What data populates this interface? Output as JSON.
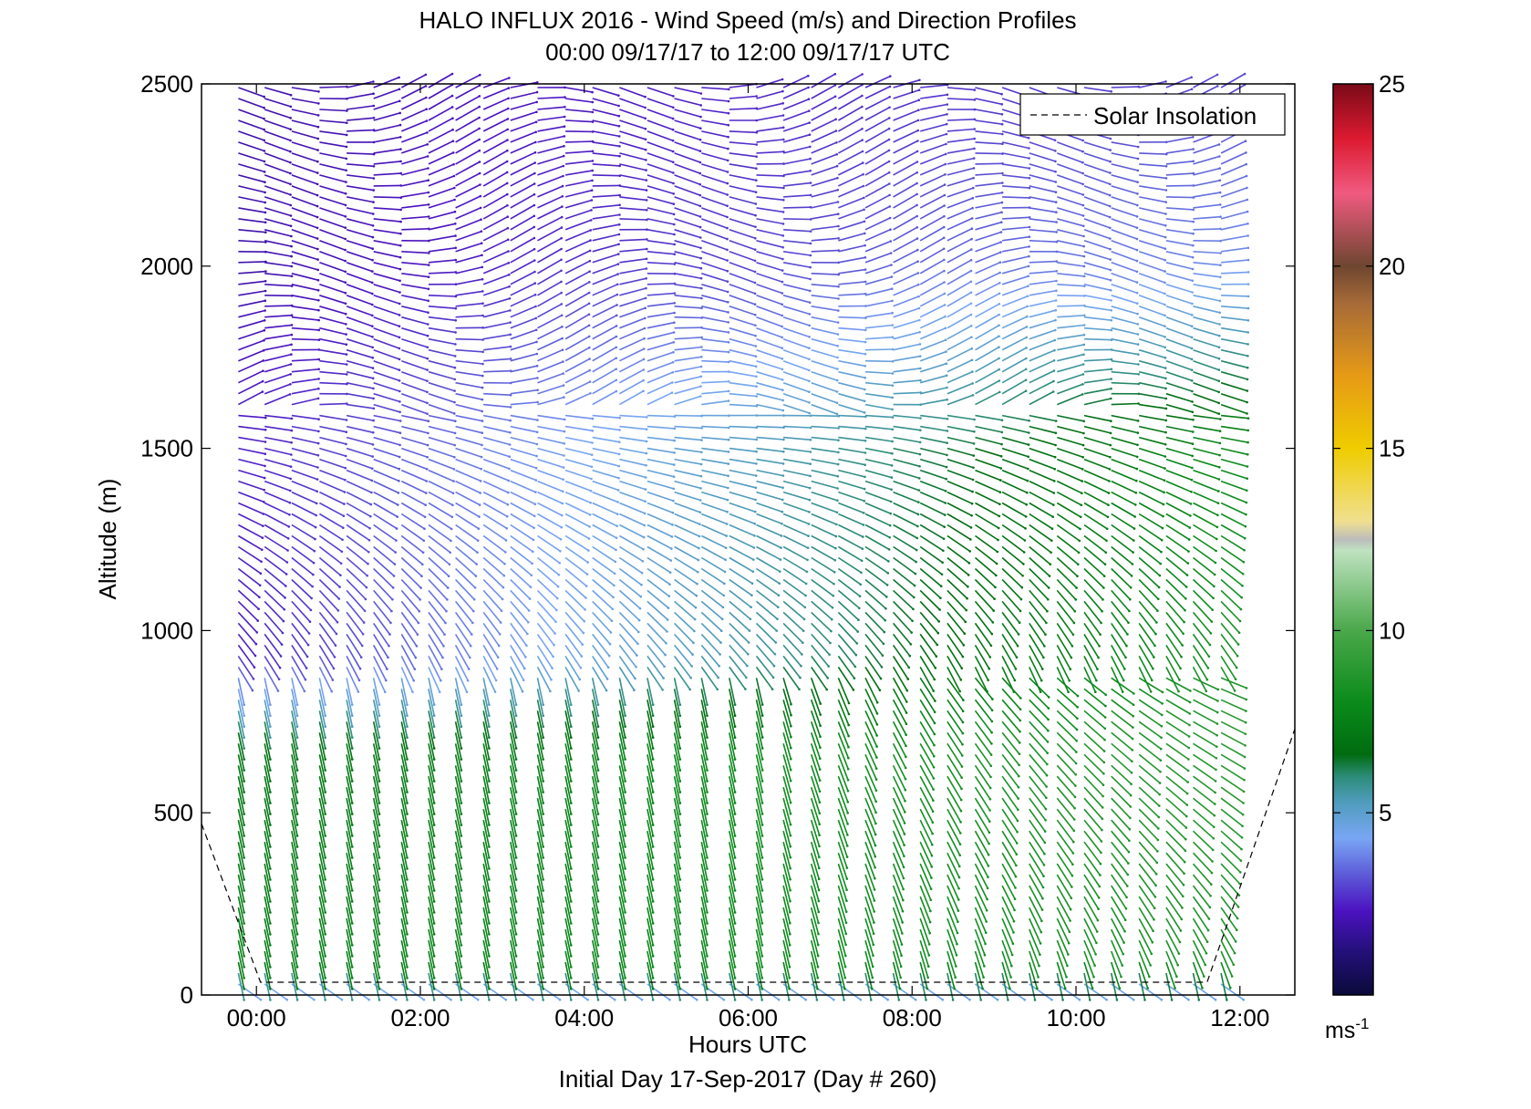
{
  "chart_data": {
    "type": "barb",
    "title": "HALO INFLUX 2016 - Wind Speed (m/s) and Direction Profiles",
    "subtitle": "00:00 09/17/17 to 12:00 09/17/17  UTC",
    "xlabel": "Hours UTC",
    "ylabel": "Altitude (m)",
    "footer": "Initial Day 17-Sep-2017 (Day # 260)",
    "xlim": [
      -0.67,
      12.67
    ],
    "ylim": [
      0,
      2500
    ],
    "x_ticks": [
      0,
      2,
      4,
      6,
      8,
      10,
      12
    ],
    "x_tick_labels": [
      "00:00",
      "02:00",
      "04:00",
      "06:00",
      "08:00",
      "10:00",
      "12:00"
    ],
    "y_ticks": [
      0,
      500,
      1000,
      1500,
      2000,
      2500
    ],
    "y_tick_labels": [
      "0",
      "500",
      "1000",
      "1500",
      "2000",
      "2500"
    ],
    "legend": {
      "entries": [
        "Solar Insolation"
      ],
      "placement": "top-right",
      "style": "dashed"
    },
    "colorbar": {
      "unit_label": "ms",
      "unit_exponent": "-1",
      "range": [
        0,
        25
      ],
      "ticks": [
        5,
        10,
        15,
        20,
        25
      ],
      "tick_labels": [
        "5",
        "10",
        "15",
        "20",
        "25"
      ],
      "stops": [
        {
          "v": 0,
          "c": "#0a0a3a"
        },
        {
          "v": 1.2,
          "c": "#24107a"
        },
        {
          "v": 2.3,
          "c": "#4b12c0"
        },
        {
          "v": 3.3,
          "c": "#5d5ad8"
        },
        {
          "v": 4.3,
          "c": "#79a6f4"
        },
        {
          "v": 5.3,
          "c": "#4f9cbc"
        },
        {
          "v": 6.0,
          "c": "#2c8c78"
        },
        {
          "v": 6.6,
          "c": "#006c10"
        },
        {
          "v": 8.0,
          "c": "#0a8a1a"
        },
        {
          "v": 10.0,
          "c": "#4aa84a"
        },
        {
          "v": 12.2,
          "c": "#bfe2c0"
        },
        {
          "v": 12.5,
          "c": "#bcbcbc"
        },
        {
          "v": 13.0,
          "c": "#f0e090"
        },
        {
          "v": 15.0,
          "c": "#efcc00"
        },
        {
          "v": 17.0,
          "c": "#e69a16"
        },
        {
          "v": 19.0,
          "c": "#a66a38"
        },
        {
          "v": 20.0,
          "c": "#6e4630"
        },
        {
          "v": 22.0,
          "c": "#f05a80"
        },
        {
          "v": 23.5,
          "c": "#dc1a30"
        },
        {
          "v": 25.0,
          "c": "#7a0a18"
        }
      ]
    },
    "solar_insolation": {
      "x": [
        -0.67,
        0.05,
        11.6,
        12.67
      ],
      "y": [
        470,
        35,
        35,
        730
      ]
    },
    "profile_times_h": [
      -0.22,
      0.1,
      0.43,
      0.77,
      1.1,
      1.43,
      1.77,
      2.1,
      2.43,
      2.77,
      3.1,
      3.43,
      3.77,
      4.1,
      4.43,
      4.77,
      5.1,
      5.43,
      5.77,
      6.1,
      6.43,
      6.77,
      7.1,
      7.43,
      7.77,
      8.1,
      8.43,
      8.77,
      9.1,
      9.43,
      9.77,
      10.1,
      10.43,
      10.77,
      11.1,
      11.43,
      11.77
    ],
    "barb_altitude_step_m": 30,
    "max_altitude_m": 2490,
    "speed_profile_bands": [
      {
        "alt_m": 0,
        "early_ms": 3.0,
        "late_ms": 3.0
      },
      {
        "alt_m": 100,
        "early_ms": 7.5,
        "late_ms": 8.5
      },
      {
        "alt_m": 700,
        "early_ms": 7.0,
        "late_ms": 9.0
      },
      {
        "alt_m": 950,
        "early_ms": 2.5,
        "late_ms": 8.5
      },
      {
        "alt_m": 1500,
        "early_ms": 2.5,
        "late_ms": 8.0
      },
      {
        "alt_m": 2000,
        "early_ms": 2.0,
        "late_ms": 4.0
      },
      {
        "alt_m": 2500,
        "early_ms": 2.0,
        "late_ms": 3.0
      }
    ]
  }
}
